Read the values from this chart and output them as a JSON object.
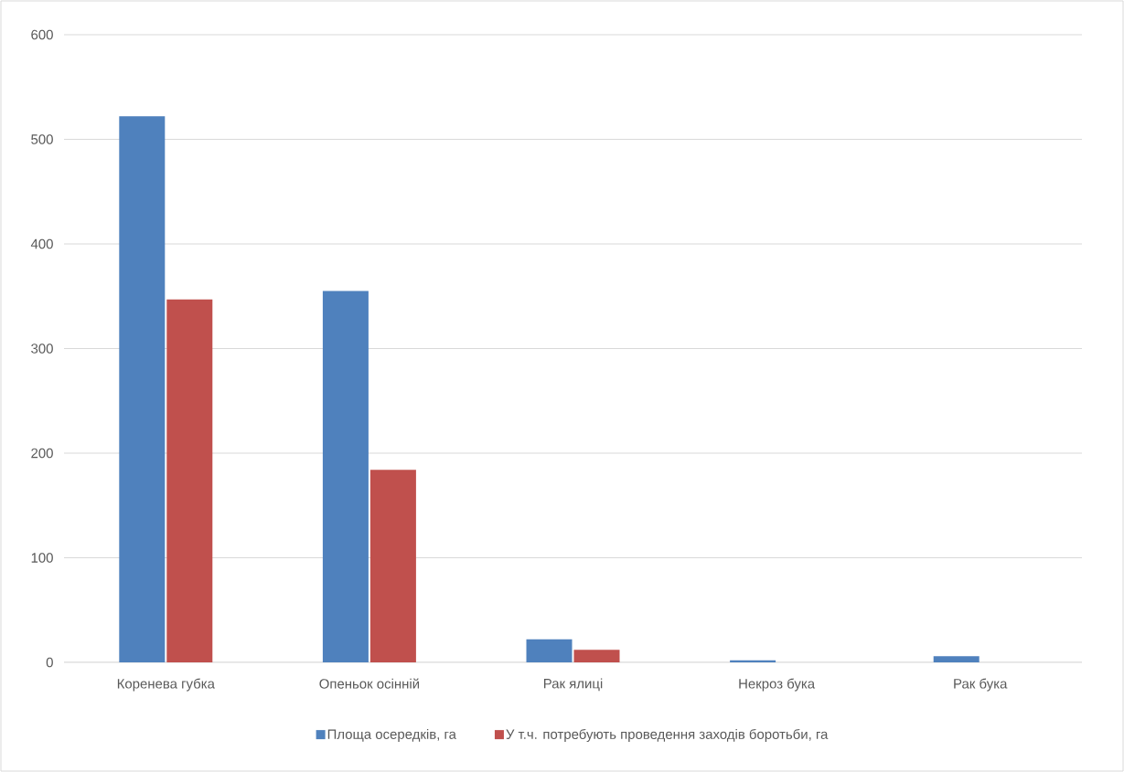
{
  "chart_data": {
    "type": "bar",
    "categories": [
      "Коренева губка",
      "Опеньок осінній",
      "Рак ялиці",
      "Некроз бука",
      "Рак бука"
    ],
    "series": [
      {
        "name": "Площа осередків, га",
        "color": "#4f81bd",
        "values": [
          522,
          355,
          22,
          2,
          6
        ]
      },
      {
        "name": "У т.ч. потребують проведення заходів боротьби, га",
        "color": "#c0504d",
        "values": [
          347,
          184,
          12,
          0,
          0
        ]
      }
    ],
    "ylim": [
      0,
      600
    ],
    "yticks": [
      0,
      100,
      200,
      300,
      400,
      500,
      600
    ],
    "grid": "y",
    "legend": "bottom"
  }
}
